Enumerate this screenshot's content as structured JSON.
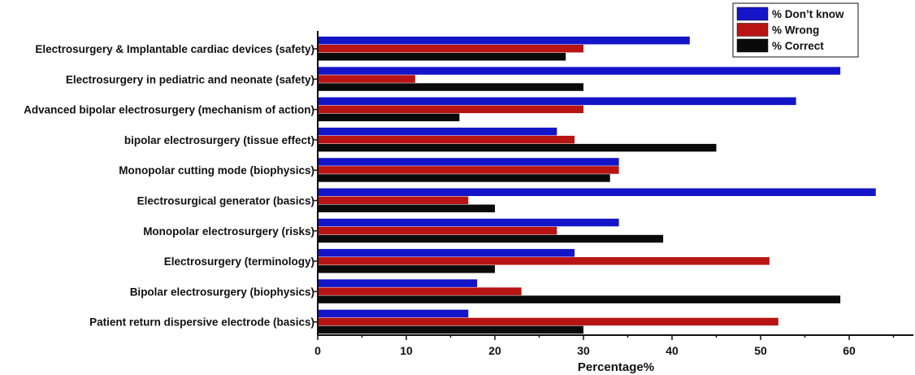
{
  "chart_data": {
    "type": "bar",
    "orientation": "horizontal",
    "title": "",
    "xlabel": "Percentage%",
    "ylabel": "",
    "xlim": [
      0,
      68
    ],
    "xticks": [
      "0",
      "10",
      "20",
      "30",
      "40",
      "50",
      "60"
    ],
    "grid": false,
    "legend_position": "top-right",
    "categories": [
      "Electrosurgery & Implantable cardiac devices (safety)",
      "Electrosurgery in pediatric and neonate (safety)",
      "Advanced bipolar electrosurgery (mechanism of action)",
      "bipolar electrosurgery (tissue effect)",
      "Monopolar cutting mode (biophysics)",
      "Electrosurgical generator (basics)",
      "Monopolar electrosurgery (risks)",
      "Electrosurgery (terminology)",
      "Bipolar electrosurgery (biophysics)",
      "Patient return dispersive electrode (basics)"
    ],
    "series": [
      {
        "name": "% Don’t know",
        "color": "#1414c8",
        "values": [
          42,
          59,
          54,
          27,
          34,
          63,
          34,
          29,
          18,
          17
        ]
      },
      {
        "name": "% Wrong",
        "color": "#b81414",
        "values": [
          30,
          11,
          30,
          29,
          34,
          17,
          27,
          51,
          23,
          52
        ]
      },
      {
        "name": "% Correct",
        "color": "#0a0a0a",
        "values": [
          28,
          30,
          16,
          45,
          33,
          20,
          39,
          20,
          59,
          30
        ]
      }
    ]
  }
}
